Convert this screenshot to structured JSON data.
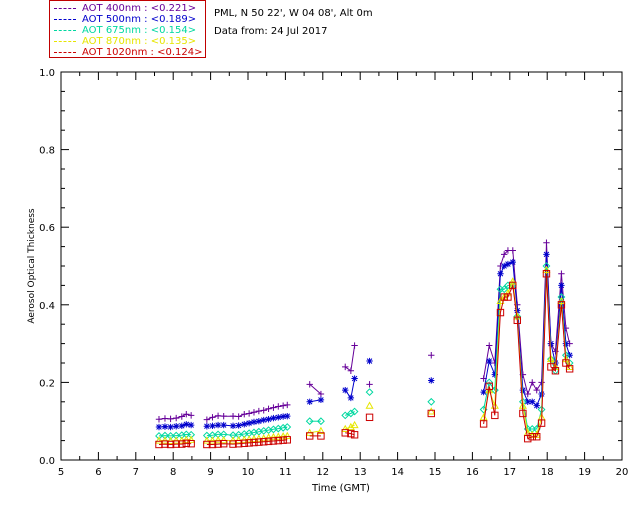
{
  "legend": [
    {
      "label": "AOT  400nm : <0.221>",
      "color": "#660099"
    },
    {
      "label": "AOT  500nm : <0.189>",
      "color": "#0000cc"
    },
    {
      "label": "AOT  675nm : <0.154>",
      "color": "#00d8a0"
    },
    {
      "label": "AOT  870nm : <0.135>",
      "color": "#e6e600"
    },
    {
      "label": "AOT 1020nm : <0.124>",
      "color": "#cc0000"
    }
  ],
  "info": {
    "location": "PML, N 50 22', W 04 08', Alt 0m",
    "date_line": "Data from: 24 Jul 2017"
  },
  "chart_data": {
    "type": "line",
    "title": "",
    "xlabel": "Time (GMT)",
    "ylabel": "Aerosol Optical Thickness",
    "xlim": [
      5,
      20
    ],
    "ylim": [
      0.0,
      1.0
    ],
    "xticks": [
      "5",
      "6",
      "7",
      "8",
      "9",
      "10",
      "11",
      "12",
      "13",
      "14",
      "15",
      "16",
      "17",
      "18",
      "19",
      "20"
    ],
    "yticks": [
      "0.0",
      "0.2",
      "0.4",
      "0.6",
      "0.8",
      "1.0"
    ],
    "x": [
      7.62,
      7.78,
      7.93,
      8.08,
      8.23,
      8.35,
      8.48,
      8.9,
      9.05,
      9.2,
      9.35,
      9.6,
      9.75,
      9.9,
      10.03,
      10.16,
      10.29,
      10.42,
      10.55,
      10.68,
      10.81,
      10.94,
      11.05,
      11.65,
      11.95,
      12.6,
      12.75,
      12.85,
      13.25,
      14.9,
      16.3,
      16.45,
      16.6,
      16.75,
      16.85,
      16.95,
      17.08,
      17.2,
      17.35,
      17.48,
      17.6,
      17.72,
      17.85,
      17.98,
      18.1,
      18.22,
      18.38,
      18.5,
      18.6
    ],
    "series": [
      {
        "name": "AOT  400nm",
        "marker": "plus",
        "values": [
          0.105,
          0.107,
          0.106,
          0.108,
          0.112,
          0.118,
          0.115,
          0.104,
          0.11,
          0.114,
          0.113,
          0.113,
          0.112,
          0.118,
          0.12,
          0.123,
          0.126,
          0.128,
          0.132,
          0.135,
          0.138,
          0.14,
          0.142,
          0.195,
          0.17,
          0.24,
          0.23,
          0.295,
          0.195,
          0.27,
          0.21,
          0.295,
          0.25,
          0.5,
          0.53,
          0.54,
          0.54,
          0.4,
          0.22,
          0.17,
          0.2,
          0.18,
          0.2,
          0.56,
          0.3,
          0.28,
          0.48,
          0.34,
          0.3
        ]
      },
      {
        "name": "AOT  500nm",
        "marker": "asterisk",
        "values": [
          0.085,
          0.086,
          0.085,
          0.087,
          0.088,
          0.092,
          0.09,
          0.087,
          0.088,
          0.09,
          0.09,
          0.088,
          0.089,
          0.092,
          0.095,
          0.098,
          0.1,
          0.103,
          0.105,
          0.108,
          0.11,
          0.112,
          0.113,
          0.15,
          0.155,
          0.18,
          0.16,
          0.21,
          0.255,
          0.205,
          0.175,
          0.255,
          0.22,
          0.48,
          0.5,
          0.505,
          0.51,
          0.385,
          0.18,
          0.15,
          0.15,
          0.14,
          0.17,
          0.53,
          0.3,
          0.25,
          0.45,
          0.3,
          0.27
        ]
      },
      {
        "name": "AOT  675nm",
        "marker": "diamond",
        "values": [
          0.062,
          0.063,
          0.062,
          0.063,
          0.064,
          0.066,
          0.065,
          0.063,
          0.064,
          0.066,
          0.066,
          0.064,
          0.065,
          0.067,
          0.069,
          0.071,
          0.073,
          0.075,
          0.077,
          0.079,
          0.081,
          0.083,
          0.085,
          0.1,
          0.1,
          0.115,
          0.12,
          0.125,
          0.175,
          0.15,
          0.13,
          0.2,
          0.18,
          0.44,
          0.44,
          0.45,
          0.45,
          0.37,
          0.15,
          0.08,
          0.08,
          0.08,
          0.13,
          0.5,
          0.26,
          0.23,
          0.42,
          0.27,
          0.25
        ]
      },
      {
        "name": "AOT  870nm",
        "marker": "triangle",
        "values": [
          0.05,
          0.05,
          0.049,
          0.05,
          0.05,
          0.052,
          0.052,
          0.05,
          0.05,
          0.051,
          0.051,
          0.05,
          0.051,
          0.052,
          0.053,
          0.054,
          0.055,
          0.056,
          0.058,
          0.059,
          0.06,
          0.061,
          0.062,
          0.07,
          0.075,
          0.08,
          0.085,
          0.09,
          0.14,
          0.125,
          0.11,
          0.18,
          0.14,
          0.41,
          0.42,
          0.43,
          0.46,
          0.37,
          0.14,
          0.07,
          0.065,
          0.065,
          0.11,
          0.49,
          0.26,
          0.24,
          0.41,
          0.26,
          0.24
        ]
      },
      {
        "name": "AOT 1020nm",
        "marker": "square",
        "values": [
          0.04,
          0.041,
          0.04,
          0.041,
          0.041,
          0.043,
          0.042,
          0.04,
          0.04,
          0.041,
          0.042,
          0.041,
          0.042,
          0.043,
          0.044,
          0.045,
          0.046,
          0.047,
          0.048,
          0.049,
          0.05,
          0.051,
          0.052,
          0.062,
          0.062,
          0.07,
          0.068,
          0.065,
          0.11,
          0.12,
          0.093,
          0.19,
          0.115,
          0.38,
          0.42,
          0.42,
          0.45,
          0.36,
          0.12,
          0.055,
          0.06,
          0.06,
          0.095,
          0.48,
          0.24,
          0.23,
          0.4,
          0.25,
          0.235
        ]
      }
    ]
  }
}
